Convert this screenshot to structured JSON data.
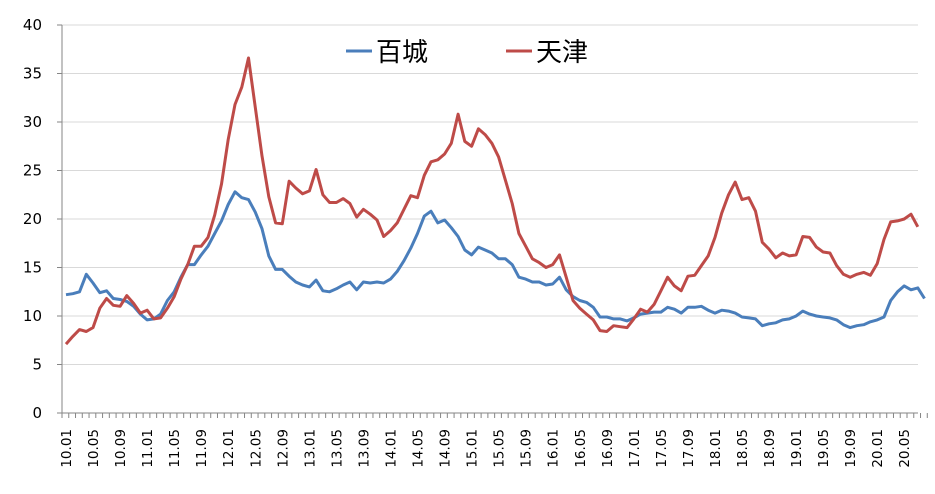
{
  "chart_data": {
    "type": "line",
    "title": "",
    "xlabel": "",
    "ylabel": "",
    "ylim": [
      0,
      40
    ],
    "yticks": [
      0,
      5,
      10,
      15,
      20,
      25,
      30,
      35,
      40
    ],
    "grid": true,
    "legend_position": "top-center",
    "x_start": "10.01",
    "x_tick_labels": [
      "10.01",
      "10.05",
      "10.09",
      "11.01",
      "11.05",
      "11.09",
      "12.01",
      "12.05",
      "12.09",
      "13.01",
      "13.05",
      "13.09",
      "14.01",
      "14.05",
      "14.09",
      "15.01",
      "15.05",
      "15.09",
      "16.01",
      "16.05",
      "16.09",
      "17.01",
      "17.05",
      "17.09",
      "18.01",
      "18.05",
      "18.09",
      "19.01",
      "19.05",
      "19.09",
      "20.01",
      "20.05"
    ],
    "series": [
      {
        "name": "百城",
        "color": "#4a7ebb",
        "values": [
          12.2,
          12.3,
          12.5,
          14.3,
          13.4,
          12.4,
          12.6,
          11.8,
          11.7,
          11.5,
          11.0,
          10.2,
          9.6,
          9.7,
          10.2,
          11.6,
          12.5,
          14.0,
          15.3,
          15.3,
          16.3,
          17.2,
          18.5,
          19.8,
          21.5,
          22.8,
          22.2,
          22.0,
          20.7,
          19.0,
          16.2,
          14.8,
          14.8,
          14.1,
          13.5,
          13.2,
          13.0,
          13.7,
          12.6,
          12.5,
          12.8,
          13.2,
          13.5,
          12.7,
          13.5,
          13.4,
          13.5,
          13.4,
          13.8,
          14.6,
          15.7,
          17.0,
          18.5,
          20.3,
          20.8,
          19.6,
          19.9,
          19.1,
          18.2,
          16.8,
          16.3,
          17.1,
          16.8,
          16.5,
          15.9,
          15.9,
          15.3,
          14.0,
          13.8,
          13.5,
          13.5,
          13.2,
          13.3,
          14.0,
          12.7,
          12.0,
          11.6,
          11.4,
          10.9,
          9.9,
          9.9,
          9.7,
          9.7,
          9.5,
          9.8,
          10.2,
          10.3,
          10.4,
          10.4,
          10.9,
          10.7,
          10.3,
          10.9,
          10.9,
          11.0,
          10.6,
          10.3,
          10.6,
          10.5,
          10.3,
          9.9,
          9.8,
          9.7,
          9.0,
          9.2,
          9.3,
          9.6,
          9.7,
          10.0,
          10.5,
          10.2,
          10.0,
          9.9,
          9.8,
          9.6,
          9.1,
          8.8,
          9.0,
          9.1,
          9.4,
          9.6,
          9.9,
          11.6,
          12.5,
          13.1,
          12.7,
          12.9,
          11.8
        ]
      },
      {
        "name": "天津",
        "color": "#be4b48",
        "values": [
          7.1,
          7.9,
          8.6,
          8.4,
          8.8,
          10.8,
          11.8,
          11.1,
          11.0,
          12.1,
          11.3,
          10.3,
          10.6,
          9.7,
          9.8,
          10.8,
          12.0,
          13.8,
          15.3,
          17.2,
          17.2,
          18.1,
          20.4,
          23.6,
          28.2,
          31.8,
          33.6,
          36.6,
          31.5,
          26.5,
          22.3,
          19.6,
          19.5,
          23.9,
          23.2,
          22.6,
          22.9,
          25.1,
          22.5,
          21.7,
          21.7,
          22.1,
          21.6,
          20.2,
          21.0,
          20.5,
          19.9,
          18.2,
          18.8,
          19.6,
          21.0,
          22.4,
          22.2,
          24.5,
          25.9,
          26.1,
          26.7,
          27.8,
          30.8,
          28.0,
          27.5,
          29.3,
          28.7,
          27.8,
          26.4,
          24.0,
          21.6,
          18.5,
          17.2,
          15.9,
          15.5,
          15.0,
          15.3,
          16.3,
          14.0,
          11.6,
          10.8,
          10.2,
          9.6,
          8.5,
          8.4,
          9.0,
          8.9,
          8.8,
          9.7,
          10.7,
          10.4,
          11.2,
          12.6,
          14.0,
          13.1,
          12.6,
          14.1,
          14.2,
          15.2,
          16.2,
          18.1,
          20.6,
          22.5,
          23.8,
          22.0,
          22.2,
          20.8,
          17.6,
          16.9,
          16.0,
          16.5,
          16.2,
          16.3,
          18.2,
          18.1,
          17.1,
          16.6,
          16.5,
          15.2,
          14.3,
          14.0,
          14.3,
          14.5,
          14.2,
          15.4,
          17.9,
          19.7,
          19.8,
          20.0,
          20.5,
          19.2
        ]
      }
    ]
  },
  "legend": {
    "items": [
      {
        "label": "百城",
        "color": "#4a7ebb"
      },
      {
        "label": "天津",
        "color": "#be4b48"
      }
    ]
  }
}
